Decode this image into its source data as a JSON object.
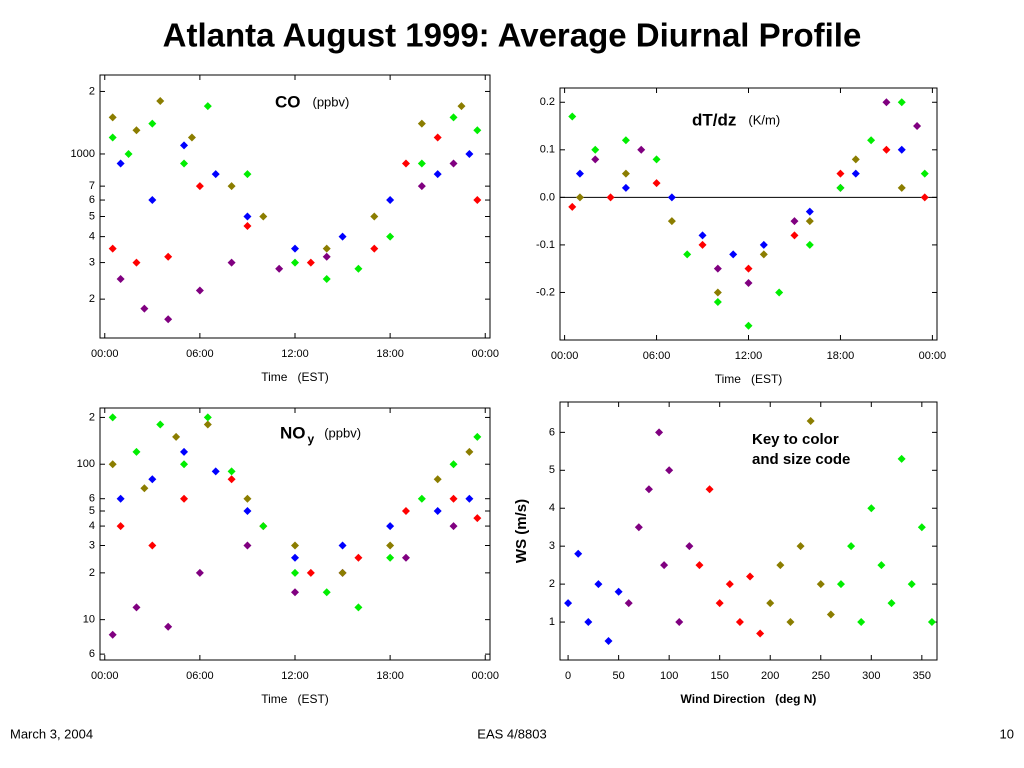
{
  "header": {
    "title": "Atlanta August 1999: Average Diurnal Profile"
  },
  "footer": {
    "date": "March 3, 2004",
    "course": "EAS 4/8803",
    "page": "10"
  },
  "chart_data": [
    {
      "type": "scatter",
      "annotation": {
        "label": "CO",
        "units": "(ppbv)"
      },
      "x_label": "Time   (EST)",
      "yscale": "log",
      "xlim": [
        -0.3,
        24.3
      ],
      "xticks": [
        {
          "value": 0,
          "label": "00:00"
        },
        {
          "value": 6,
          "label": "06:00"
        },
        {
          "value": 12,
          "label": "12:00"
        },
        {
          "value": 18,
          "label": "18:00"
        },
        {
          "value": 24,
          "label": "00:00"
        }
      ],
      "ylim": [
        130,
        2400
      ],
      "yticks": [
        {
          "value": 2000,
          "label": "2"
        },
        1000,
        {
          "value": 700,
          "label": "7"
        },
        {
          "value": 600,
          "label": "6"
        },
        {
          "value": 500,
          "label": "5"
        },
        {
          "value": 400,
          "label": "4"
        },
        {
          "value": 300,
          "label": "3"
        },
        {
          "value": 200,
          "label": "2"
        }
      ],
      "series": [
        {
          "color": "#0000ff",
          "x": [
            1,
            3,
            5,
            7,
            9,
            12,
            15,
            18,
            21,
            23
          ],
          "values": [
            900,
            600,
            1100,
            800,
            500,
            350,
            400,
            600,
            800,
            1000
          ]
        },
        {
          "color": "#800080",
          "x": [
            1,
            2.5,
            4,
            6,
            8,
            11,
            14,
            20,
            22
          ],
          "values": [
            250,
            180,
            160,
            220,
            300,
            280,
            320,
            700,
            900
          ]
        },
        {
          "color": "#ff0000",
          "x": [
            0.5,
            2,
            4,
            6,
            9,
            13,
            17,
            19,
            21,
            23.5
          ],
          "values": [
            350,
            300,
            320,
            700,
            450,
            300,
            350,
            900,
            1200,
            600
          ]
        },
        {
          "color": "#8b7d00",
          "x": [
            0.5,
            2,
            3.5,
            5.5,
            8,
            10,
            14,
            17,
            20,
            22.5
          ],
          "values": [
            1500,
            1300,
            1800,
            1200,
            700,
            500,
            350,
            500,
            1400,
            1700
          ]
        },
        {
          "color": "#00ee00",
          "x": [
            0.5,
            1.5,
            3,
            5,
            6.5,
            9,
            12,
            14,
            16,
            18,
            20,
            22,
            23.5
          ],
          "values": [
            1200,
            1000,
            1400,
            900,
            1700,
            800,
            300,
            250,
            280,
            400,
            900,
            1500,
            1300
          ]
        }
      ]
    },
    {
      "type": "scatter",
      "annotation": {
        "label": "dT/dz",
        "units": "(K/m)"
      },
      "x_label": "Time   (EST)",
      "zero_line": true,
      "xlim": [
        -0.3,
        24.3
      ],
      "xticks": [
        {
          "value": 0,
          "label": "00:00"
        },
        {
          "value": 6,
          "label": "06:00"
        },
        {
          "value": 12,
          "label": "12:00"
        },
        {
          "value": 18,
          "label": "18:00"
        },
        {
          "value": 24,
          "label": "00:00"
        }
      ],
      "ylim": [
        -0.3,
        0.23
      ],
      "yticks": [
        0.2,
        0.1,
        {
          "value": 0,
          "label": "0.0"
        },
        -0.1,
        -0.2
      ],
      "series": [
        {
          "color": "#0000ff",
          "x": [
            1,
            4,
            7,
            9,
            11,
            13,
            16,
            19,
            22
          ],
          "values": [
            0.05,
            0.02,
            0.0,
            -0.08,
            -0.12,
            -0.1,
            -0.03,
            0.05,
            0.1
          ]
        },
        {
          "color": "#800080",
          "x": [
            2,
            5,
            10,
            12,
            15,
            18,
            21,
            23
          ],
          "values": [
            0.08,
            0.1,
            -0.15,
            -0.18,
            -0.05,
            0.02,
            0.2,
            0.15
          ]
        },
        {
          "color": "#ff0000",
          "x": [
            0.5,
            3,
            6,
            9,
            12,
            15,
            18,
            21,
            23.5
          ],
          "values": [
            -0.02,
            0.0,
            0.03,
            -0.1,
            -0.15,
            -0.08,
            0.05,
            0.1,
            0.0
          ]
        },
        {
          "color": "#8b7d00",
          "x": [
            1,
            4,
            7,
            10,
            13,
            16,
            19,
            22
          ],
          "values": [
            0.0,
            0.05,
            -0.05,
            -0.2,
            -0.12,
            -0.05,
            0.08,
            0.02
          ]
        },
        {
          "color": "#00ee00",
          "x": [
            0.5,
            2,
            4,
            6,
            8,
            10,
            12,
            14,
            16,
            18,
            20,
            22,
            23.5
          ],
          "values": [
            0.17,
            0.1,
            0.12,
            0.08,
            -0.12,
            -0.22,
            -0.27,
            -0.2,
            -0.1,
            0.02,
            0.12,
            0.2,
            0.05
          ]
        }
      ]
    },
    {
      "type": "scatter",
      "annotation": {
        "label": "NO",
        "label_sub": "y",
        "units": "(ppbv)"
      },
      "x_label": "Time   (EST)",
      "yscale": "log",
      "xlim": [
        -0.3,
        24.3
      ],
      "xticks": [
        {
          "value": 0,
          "label": "00:00"
        },
        {
          "value": 6,
          "label": "06:00"
        },
        {
          "value": 12,
          "label": "12:00"
        },
        {
          "value": 18,
          "label": "18:00"
        },
        {
          "value": 24,
          "label": "00:00"
        }
      ],
      "ylim": [
        5.5,
        230
      ],
      "yticks": [
        {
          "value": 200,
          "label": "2"
        },
        100,
        {
          "value": 60,
          "label": "6"
        },
        {
          "value": 50,
          "label": "5"
        },
        {
          "value": 40,
          "label": "4"
        },
        {
          "value": 30,
          "label": "3"
        },
        {
          "value": 20,
          "label": "2"
        },
        10,
        6
      ],
      "series": [
        {
          "color": "#0000ff",
          "x": [
            1,
            3,
            5,
            7,
            9,
            12,
            15,
            18,
            21,
            23
          ],
          "values": [
            60,
            80,
            120,
            90,
            50,
            25,
            30,
            40,
            50,
            60
          ]
        },
        {
          "color": "#800080",
          "x": [
            0.5,
            2,
            4,
            6,
            9,
            12,
            15,
            19,
            22
          ],
          "values": [
            8,
            12,
            9,
            20,
            30,
            15,
            20,
            25,
            40
          ]
        },
        {
          "color": "#ff0000",
          "x": [
            1,
            3,
            5,
            8,
            10,
            13,
            16,
            19,
            22,
            23.5
          ],
          "values": [
            40,
            30,
            60,
            80,
            40,
            20,
            25,
            50,
            60,
            45
          ]
        },
        {
          "color": "#8b7d00",
          "x": [
            0.5,
            2.5,
            4.5,
            6.5,
            9,
            12,
            15,
            18,
            21,
            23
          ],
          "values": [
            100,
            70,
            150,
            180,
            60,
            30,
            20,
            30,
            80,
            120
          ]
        },
        {
          "color": "#00ee00",
          "x": [
            0.5,
            2,
            3.5,
            5,
            6.5,
            8,
            10,
            12,
            14,
            16,
            18,
            20,
            22,
            23.5
          ],
          "values": [
            200,
            120,
            180,
            100,
            200,
            90,
            40,
            20,
            15,
            12,
            25,
            60,
            100,
            150
          ]
        }
      ]
    },
    {
      "type": "scatter",
      "annotation": {
        "lines": [
          "Key to color",
          "and size code"
        ]
      },
      "x_label": "Wind Direction   (deg N)",
      "y_label": "WS (m/s)",
      "xlim": [
        -8,
        365
      ],
      "xticks": [
        0,
        50,
        100,
        150,
        200,
        250,
        300,
        350
      ],
      "ylim": [
        0,
        6.8
      ],
      "yticks": [
        1,
        2,
        3,
        4,
        5,
        6
      ],
      "series": [
        {
          "color": "#0000ff",
          "x": [
            0,
            10,
            20,
            30,
            40,
            50
          ],
          "values": [
            1.5,
            2.8,
            1.0,
            2.0,
            0.5,
            1.8
          ]
        },
        {
          "color": "#800080",
          "x": [
            60,
            70,
            80,
            90,
            95,
            100,
            110,
            120
          ],
          "values": [
            1.5,
            3.5,
            4.5,
            6.0,
            2.5,
            5.0,
            1.0,
            3.0
          ]
        },
        {
          "color": "#ff0000",
          "x": [
            130,
            140,
            150,
            160,
            170,
            180,
            190
          ],
          "values": [
            2.5,
            4.5,
            1.5,
            2.0,
            1.0,
            2.2,
            0.7
          ]
        },
        {
          "color": "#8b7d00",
          "x": [
            200,
            210,
            220,
            230,
            240,
            250,
            260
          ],
          "values": [
            1.5,
            2.5,
            1.0,
            3.0,
            6.3,
            2.0,
            1.2
          ]
        },
        {
          "color": "#00ee00",
          "x": [
            270,
            280,
            290,
            300,
            310,
            320,
            330,
            340,
            350,
            360
          ],
          "values": [
            2.0,
            3.0,
            1.0,
            4.0,
            2.5,
            1.5,
            5.3,
            2.0,
            3.5,
            1.0
          ]
        }
      ]
    }
  ]
}
